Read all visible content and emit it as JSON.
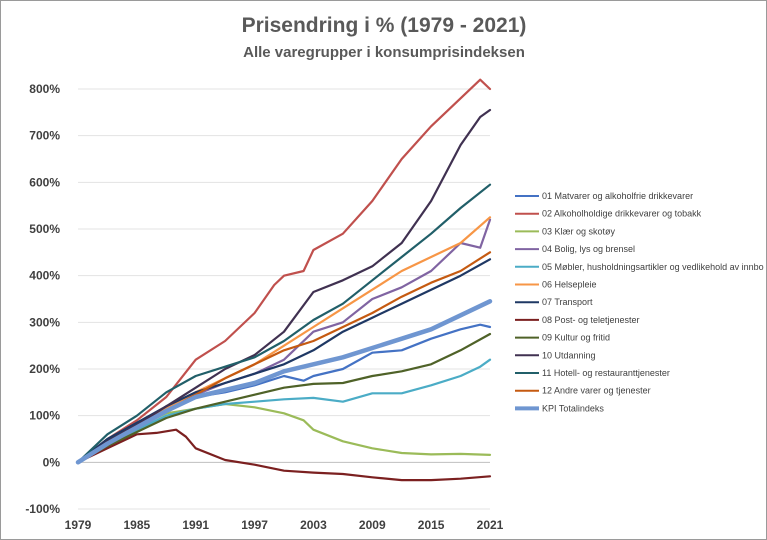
{
  "chart_data": {
    "type": "line",
    "title": "Prisendring i % (1979 - 2021)",
    "subtitle": "Alle varegrupper i konsumprisindeksen",
    "xlabel": "",
    "ylabel": "",
    "xlim": [
      1979,
      2021
    ],
    "ylim": [
      -100,
      800
    ],
    "y_ticks": [
      -100,
      0,
      100,
      200,
      300,
      400,
      500,
      600,
      700,
      800
    ],
    "y_tick_labels": [
      "-100%",
      "0%",
      "100%",
      "200%",
      "300%",
      "400%",
      "500%",
      "600%",
      "700%",
      "800%"
    ],
    "x_ticks": [
      1979,
      1985,
      1991,
      1997,
      2003,
      2009,
      2015,
      2021
    ],
    "x_tick_labels": [
      "1979",
      "1985",
      "1991",
      "1997",
      "2003",
      "2009",
      "2015",
      "2021"
    ],
    "legend_position": "right",
    "series": [
      {
        "name": "01 Matvarer og alkoholfrie drikkevarer",
        "color": "#4472c4",
        "points": [
          [
            1979,
            0
          ],
          [
            1982,
            40
          ],
          [
            1985,
            75
          ],
          [
            1988,
            110
          ],
          [
            1991,
            140
          ],
          [
            1994,
            150
          ],
          [
            1997,
            165
          ],
          [
            2000,
            185
          ],
          [
            2002,
            175
          ],
          [
            2003,
            185
          ],
          [
            2006,
            200
          ],
          [
            2009,
            235
          ],
          [
            2012,
            240
          ],
          [
            2015,
            265
          ],
          [
            2018,
            285
          ],
          [
            2020,
            295
          ],
          [
            2021,
            290
          ]
        ]
      },
      {
        "name": "02 Alkoholholdige drikkevarer og tobakk",
        "color": "#c0504d",
        "points": [
          [
            1979,
            0
          ],
          [
            1982,
            50
          ],
          [
            1985,
            90
          ],
          [
            1988,
            140
          ],
          [
            1991,
            220
          ],
          [
            1994,
            260
          ],
          [
            1997,
            320
          ],
          [
            1999,
            380
          ],
          [
            2000,
            400
          ],
          [
            2002,
            410
          ],
          [
            2003,
            455
          ],
          [
            2006,
            490
          ],
          [
            2009,
            560
          ],
          [
            2012,
            650
          ],
          [
            2015,
            720
          ],
          [
            2018,
            780
          ],
          [
            2020,
            820
          ],
          [
            2021,
            800
          ]
        ]
      },
      {
        "name": "03 Klær og skotøy",
        "color": "#9bbb59",
        "points": [
          [
            1979,
            0
          ],
          [
            1982,
            40
          ],
          [
            1985,
            75
          ],
          [
            1988,
            105
          ],
          [
            1991,
            115
          ],
          [
            1994,
            125
          ],
          [
            1997,
            118
          ],
          [
            2000,
            105
          ],
          [
            2002,
            90
          ],
          [
            2003,
            70
          ],
          [
            2006,
            45
          ],
          [
            2009,
            30
          ],
          [
            2012,
            20
          ],
          [
            2015,
            17
          ],
          [
            2018,
            18
          ],
          [
            2021,
            16
          ]
        ]
      },
      {
        "name": "04 Bolig, lys og brensel",
        "color": "#8064a2",
        "points": [
          [
            1979,
            0
          ],
          [
            1982,
            45
          ],
          [
            1985,
            80
          ],
          [
            1988,
            120
          ],
          [
            1991,
            145
          ],
          [
            1994,
            170
          ],
          [
            1997,
            190
          ],
          [
            2000,
            220
          ],
          [
            2003,
            280
          ],
          [
            2006,
            300
          ],
          [
            2009,
            350
          ],
          [
            2012,
            375
          ],
          [
            2015,
            410
          ],
          [
            2018,
            470
          ],
          [
            2020,
            460
          ],
          [
            2021,
            520
          ]
        ]
      },
      {
        "name": "05 Møbler, husholdningsartikler og vedlikehold av innbo",
        "color": "#4bacc6",
        "points": [
          [
            1979,
            0
          ],
          [
            1982,
            40
          ],
          [
            1985,
            70
          ],
          [
            1988,
            100
          ],
          [
            1991,
            115
          ],
          [
            1994,
            125
          ],
          [
            1997,
            130
          ],
          [
            2000,
            135
          ],
          [
            2003,
            138
          ],
          [
            2006,
            130
          ],
          [
            2009,
            148
          ],
          [
            2012,
            148
          ],
          [
            2015,
            165
          ],
          [
            2018,
            185
          ],
          [
            2020,
            205
          ],
          [
            2021,
            220
          ]
        ]
      },
      {
        "name": "06 Helsepleie",
        "color": "#f79646",
        "points": [
          [
            1979,
            0
          ],
          [
            1982,
            40
          ],
          [
            1985,
            75
          ],
          [
            1988,
            115
          ],
          [
            1991,
            150
          ],
          [
            1994,
            180
          ],
          [
            1997,
            210
          ],
          [
            2000,
            250
          ],
          [
            2003,
            290
          ],
          [
            2006,
            330
          ],
          [
            2009,
            370
          ],
          [
            2012,
            410
          ],
          [
            2015,
            440
          ],
          [
            2018,
            470
          ],
          [
            2021,
            525
          ]
        ]
      },
      {
        "name": "07 Transport",
        "color": "#1f3864",
        "points": [
          [
            1979,
            0
          ],
          [
            1982,
            50
          ],
          [
            1985,
            85
          ],
          [
            1988,
            120
          ],
          [
            1991,
            150
          ],
          [
            1994,
            170
          ],
          [
            1997,
            190
          ],
          [
            2000,
            210
          ],
          [
            2003,
            240
          ],
          [
            2006,
            280
          ],
          [
            2009,
            310
          ],
          [
            2012,
            340
          ],
          [
            2015,
            370
          ],
          [
            2018,
            400
          ],
          [
            2021,
            435
          ]
        ]
      },
      {
        "name": "08 Post- og teletjenester",
        "color": "#7b2020",
        "points": [
          [
            1979,
            0
          ],
          [
            1982,
            30
          ],
          [
            1985,
            60
          ],
          [
            1987,
            63
          ],
          [
            1989,
            70
          ],
          [
            1990,
            55
          ],
          [
            1991,
            30
          ],
          [
            1994,
            5
          ],
          [
            1997,
            -5
          ],
          [
            2000,
            -18
          ],
          [
            2003,
            -22
          ],
          [
            2006,
            -25
          ],
          [
            2009,
            -32
          ],
          [
            2012,
            -38
          ],
          [
            2015,
            -38
          ],
          [
            2018,
            -35
          ],
          [
            2021,
            -30
          ]
        ]
      },
      {
        "name": "09 Kultur og fritid",
        "color": "#4f6228",
        "points": [
          [
            1979,
            0
          ],
          [
            1982,
            35
          ],
          [
            1985,
            65
          ],
          [
            1988,
            95
          ],
          [
            1991,
            115
          ],
          [
            1994,
            130
          ],
          [
            1997,
            145
          ],
          [
            2000,
            160
          ],
          [
            2003,
            168
          ],
          [
            2006,
            170
          ],
          [
            2009,
            185
          ],
          [
            2012,
            195
          ],
          [
            2015,
            210
          ],
          [
            2018,
            240
          ],
          [
            2021,
            275
          ]
        ]
      },
      {
        "name": "10 Utdanning",
        "color": "#403151",
        "points": [
          [
            1979,
            0
          ],
          [
            1982,
            45
          ],
          [
            1985,
            80
          ],
          [
            1988,
            120
          ],
          [
            1991,
            160
          ],
          [
            1994,
            200
          ],
          [
            1997,
            230
          ],
          [
            2000,
            280
          ],
          [
            2003,
            365
          ],
          [
            2006,
            390
          ],
          [
            2009,
            420
          ],
          [
            2012,
            470
          ],
          [
            2015,
            560
          ],
          [
            2018,
            680
          ],
          [
            2020,
            740
          ],
          [
            2021,
            755
          ]
        ]
      },
      {
        "name": "11 Hotell- og restauranttjenester",
        "color": "#215f69",
        "points": [
          [
            1979,
            0
          ],
          [
            1982,
            60
          ],
          [
            1985,
            100
          ],
          [
            1988,
            150
          ],
          [
            1991,
            185
          ],
          [
            1994,
            205
          ],
          [
            1997,
            225
          ],
          [
            2000,
            260
          ],
          [
            2003,
            305
          ],
          [
            2006,
            340
          ],
          [
            2009,
            390
          ],
          [
            2012,
            440
          ],
          [
            2015,
            490
          ],
          [
            2018,
            545
          ],
          [
            2021,
            595
          ]
        ]
      },
      {
        "name": "12 Andre varer og tjenester",
        "color": "#c55a11",
        "points": [
          [
            1979,
            0
          ],
          [
            1982,
            40
          ],
          [
            1985,
            75
          ],
          [
            1988,
            110
          ],
          [
            1991,
            145
          ],
          [
            1994,
            180
          ],
          [
            1997,
            210
          ],
          [
            2000,
            240
          ],
          [
            2003,
            260
          ],
          [
            2006,
            290
          ],
          [
            2009,
            320
          ],
          [
            2012,
            355
          ],
          [
            2015,
            385
          ],
          [
            2018,
            410
          ],
          [
            2021,
            450
          ]
        ]
      },
      {
        "name": "KPI Totalindeks",
        "color": "#6f96d1",
        "points": [
          [
            1979,
            0
          ],
          [
            1982,
            40
          ],
          [
            1985,
            75
          ],
          [
            1988,
            110
          ],
          [
            1991,
            140
          ],
          [
            1994,
            155
          ],
          [
            1997,
            170
          ],
          [
            2000,
            195
          ],
          [
            2003,
            210
          ],
          [
            2006,
            225
          ],
          [
            2009,
            245
          ],
          [
            2012,
            265
          ],
          [
            2015,
            285
          ],
          [
            2018,
            315
          ],
          [
            2021,
            345
          ]
        ]
      }
    ]
  }
}
